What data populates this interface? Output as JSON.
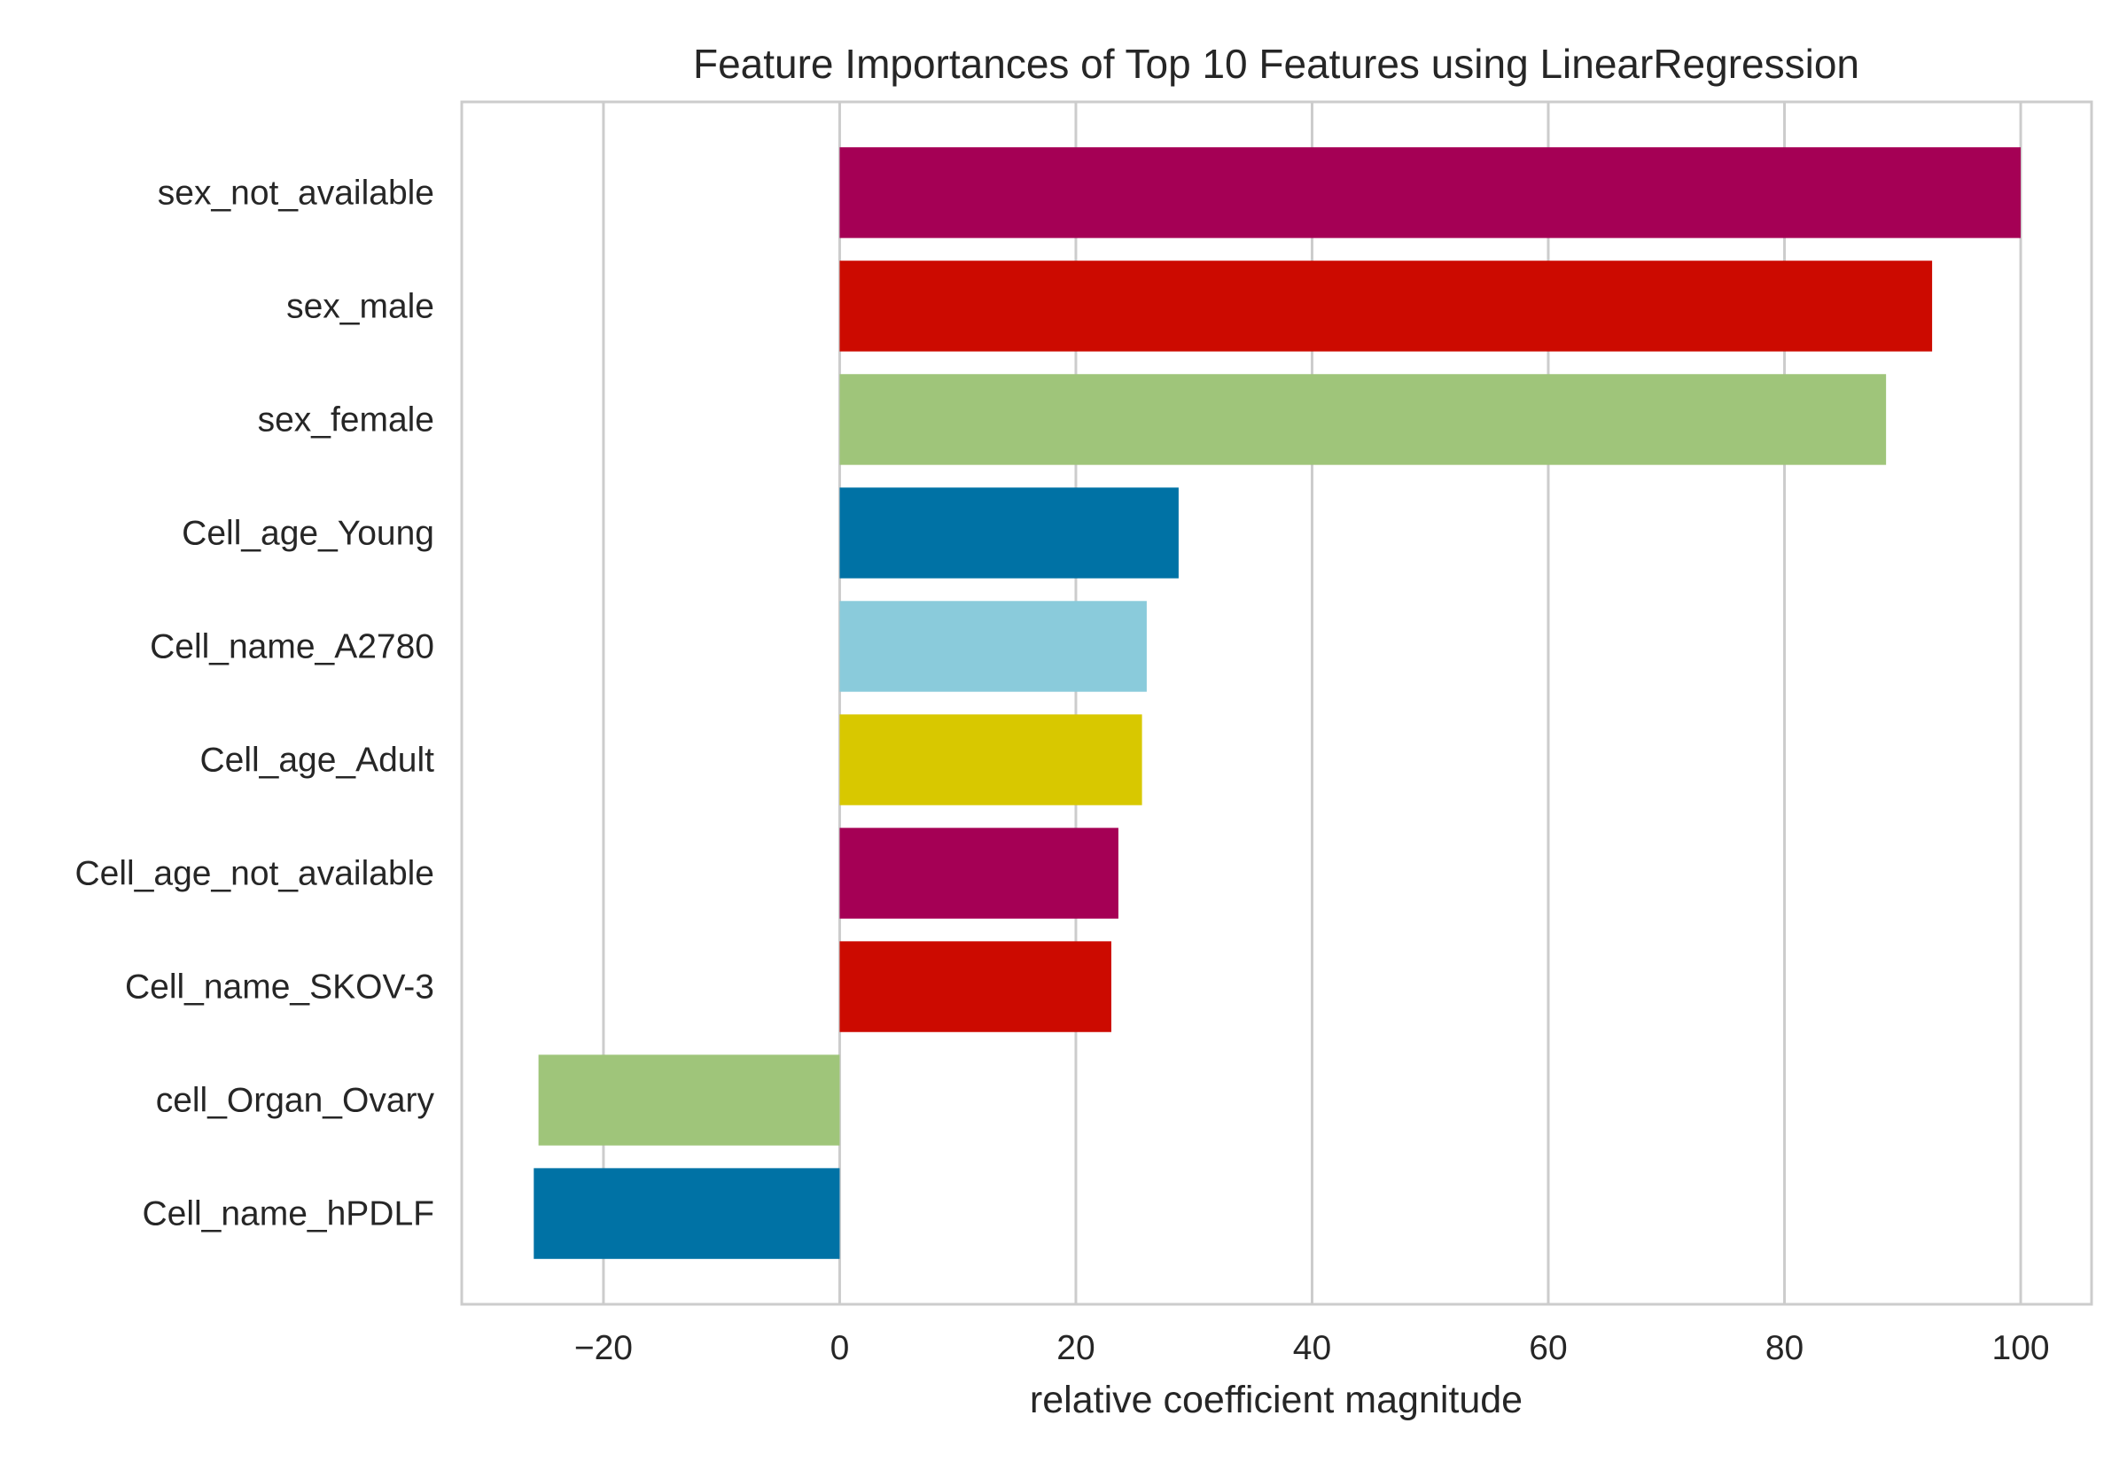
{
  "chart_data": {
    "type": "bar",
    "orientation": "horizontal",
    "title": "Feature Importances of Top 10 Features using LinearRegression",
    "xlabel": "relative coefficient magnitude",
    "ylabel": "",
    "categories": [
      "sex_not_available",
      "sex_male",
      "sex_female",
      "Cell_age_Young",
      "Cell_name_A2780",
      "Cell_age_Adult",
      "Cell_age_not_available",
      "Cell_name_SKOV-3",
      "cell_Organ_Ovary",
      "Cell_name_hPDLF"
    ],
    "values": [
      100,
      92.5,
      88.6,
      28.7,
      26.0,
      25.6,
      23.6,
      23.0,
      -25.5,
      -25.9
    ],
    "colors": [
      "#a50055",
      "#cc0a00",
      "#9fc57a",
      "#0072a5",
      "#8acbdb",
      "#d8c800",
      "#a50055",
      "#cc0a00",
      "#9fc57a",
      "#0072a5"
    ],
    "xlim": [
      -32,
      106
    ],
    "xticks": [
      -20,
      0,
      20,
      40,
      60,
      80,
      100
    ],
    "xtick_labels": [
      "−20",
      "0",
      "20",
      "40",
      "60",
      "80",
      "100"
    ],
    "grid": true,
    "legend": "none"
  }
}
